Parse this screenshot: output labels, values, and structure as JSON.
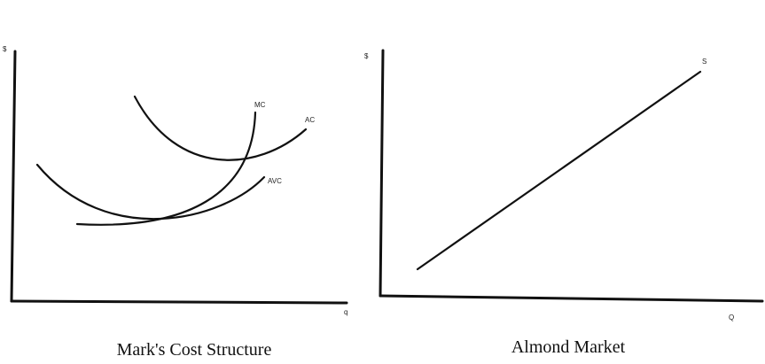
{
  "left_panel": {
    "caption": "Mark's Cost Structure",
    "y_axis_label": "$",
    "x_axis_label": "q",
    "curves": {
      "mc": "MC",
      "ac": "AC",
      "avc": "AVC"
    }
  },
  "right_panel": {
    "caption": "Almond Market",
    "y_axis_label": "$",
    "x_axis_label": "Q",
    "curves": {
      "supply": "S"
    }
  },
  "colors": {
    "ink": "#111111",
    "background": "#ffffff"
  }
}
